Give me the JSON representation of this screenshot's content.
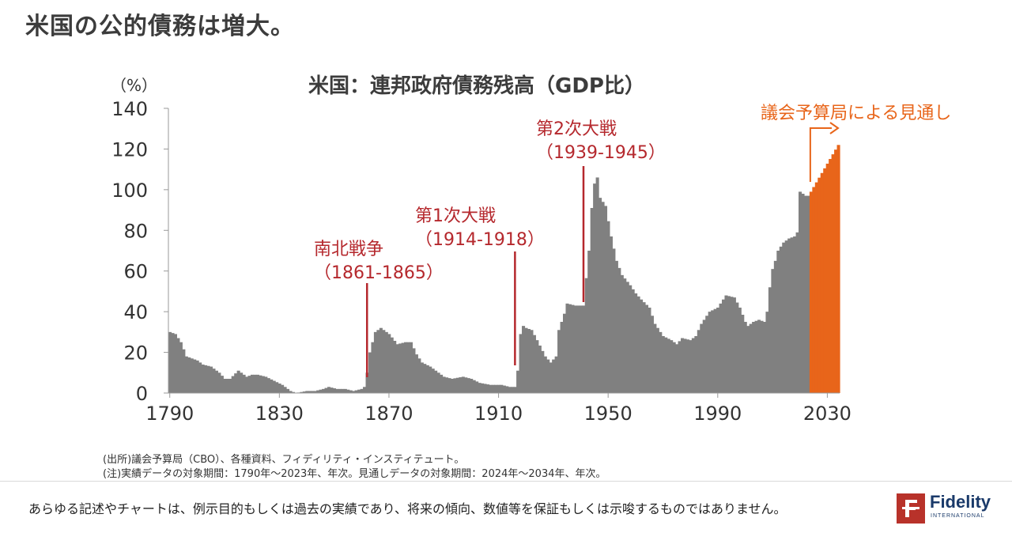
{
  "slide": {
    "title": "米国の公的債務は増大。"
  },
  "chart_data": {
    "type": "bar",
    "title": "米国：連邦政府債務残高（GDP比）",
    "ylabel": "（%）",
    "xlabel": "",
    "ylim": [
      0,
      140
    ],
    "xlim": [
      1790,
      2034
    ],
    "yticks": [
      0,
      20,
      40,
      60,
      80,
      100,
      120,
      140
    ],
    "xticks": [
      1790,
      1830,
      1870,
      1910,
      1950,
      1990,
      2030
    ],
    "grid": false,
    "series": [
      {
        "kind": "actual",
        "color": "#808080",
        "anchors": [
          [
            1790,
            30
          ],
          [
            1792,
            29
          ],
          [
            1794,
            25
          ],
          [
            1796,
            18
          ],
          [
            1800,
            16
          ],
          [
            1802,
            14
          ],
          [
            1805,
            13
          ],
          [
            1808,
            10
          ],
          [
            1810,
            7
          ],
          [
            1812,
            7
          ],
          [
            1815,
            11
          ],
          [
            1818,
            8
          ],
          [
            1820,
            9
          ],
          [
            1822,
            9
          ],
          [
            1825,
            8
          ],
          [
            1828,
            6
          ],
          [
            1831,
            4
          ],
          [
            1834,
            1
          ],
          [
            1836,
            0
          ],
          [
            1840,
            1
          ],
          [
            1843,
            1
          ],
          [
            1846,
            2
          ],
          [
            1848,
            3
          ],
          [
            1851,
            2
          ],
          [
            1854,
            2
          ],
          [
            1857,
            1
          ],
          [
            1860,
            2
          ],
          [
            1861,
            3
          ],
          [
            1862,
            10
          ],
          [
            1863,
            20
          ],
          [
            1865,
            30
          ],
          [
            1867,
            32
          ],
          [
            1870,
            29
          ],
          [
            1873,
            24
          ],
          [
            1876,
            25
          ],
          [
            1878,
            25
          ],
          [
            1880,
            19
          ],
          [
            1882,
            15
          ],
          [
            1885,
            13
          ],
          [
            1890,
            8
          ],
          [
            1893,
            7
          ],
          [
            1897,
            8
          ],
          [
            1900,
            7
          ],
          [
            1903,
            5
          ],
          [
            1907,
            4
          ],
          [
            1911,
            4
          ],
          [
            1914,
            3
          ],
          [
            1916,
            3
          ],
          [
            1917,
            11
          ],
          [
            1918,
            29
          ],
          [
            1919,
            33
          ],
          [
            1920,
            32
          ],
          [
            1922,
            31
          ],
          [
            1924,
            26
          ],
          [
            1927,
            18
          ],
          [
            1929,
            15
          ],
          [
            1931,
            18
          ],
          [
            1932,
            31
          ],
          [
            1934,
            39
          ],
          [
            1935,
            44
          ],
          [
            1938,
            43
          ],
          [
            1941,
            43
          ],
          [
            1943,
            70
          ],
          [
            1944,
            91
          ],
          [
            1945,
            103
          ],
          [
            1946,
            106
          ],
          [
            1947,
            96
          ],
          [
            1949,
            92
          ],
          [
            1951,
            77
          ],
          [
            1953,
            65
          ],
          [
            1955,
            58
          ],
          [
            1958,
            53
          ],
          [
            1960,
            49
          ],
          [
            1962,
            46
          ],
          [
            1965,
            42
          ],
          [
            1967,
            34
          ],
          [
            1970,
            28
          ],
          [
            1973,
            26
          ],
          [
            1975,
            24
          ],
          [
            1977,
            27
          ],
          [
            1980,
            26
          ],
          [
            1982,
            28
          ],
          [
            1984,
            34
          ],
          [
            1987,
            40
          ],
          [
            1990,
            42
          ],
          [
            1992,
            46
          ],
          [
            1993,
            48
          ],
          [
            1996,
            47
          ],
          [
            1998,
            42
          ],
          [
            2000,
            35
          ],
          [
            2001,
            33
          ],
          [
            2003,
            35
          ],
          [
            2005,
            36
          ],
          [
            2007,
            35
          ],
          [
            2008,
            40
          ],
          [
            2009,
            52
          ],
          [
            2010,
            61
          ],
          [
            2011,
            65
          ],
          [
            2012,
            70
          ],
          [
            2014,
            74
          ],
          [
            2016,
            76
          ],
          [
            2018,
            77
          ],
          [
            2019,
            79
          ],
          [
            2020,
            99
          ],
          [
            2021,
            98
          ],
          [
            2022,
            97
          ],
          [
            2023,
            97
          ]
        ]
      },
      {
        "kind": "projection",
        "color": "#e8651a",
        "anchors": [
          [
            2024,
            99
          ],
          [
            2034,
            122
          ]
        ]
      }
    ],
    "annotations": [
      {
        "id": "civil-war",
        "line1": "南北戦争",
        "line2": "（1861-1865）",
        "year": 1862,
        "color": "#b5282d"
      },
      {
        "id": "wwi",
        "line1": "第1次大戦",
        "line2": "（1914-1918）",
        "year": 1916,
        "color": "#b5282d"
      },
      {
        "id": "wwii",
        "line1": "第2次大戦",
        "line2": "（1939-1945）",
        "year": 1941,
        "color": "#b5282d"
      },
      {
        "id": "cbo",
        "line1": "議会予算局による見通し",
        "year": 2024,
        "color": "#e8651a"
      }
    ]
  },
  "footnotes": {
    "source": "(出所)議会予算局（CBO）、各種資料、フィディリティ・インスティテュート。",
    "period": "(注)実績データの対象期間：1790年～2023年、年次。見通しデータの対象期間：2024年～2034年、年次。"
  },
  "disclaimer": "あらゆる記述やチャートは、例示目的もしくは過去の実績であり、将来の傾向、数値等を保証もしくは示唆するものではありません。",
  "logo": {
    "word": "Fidelity",
    "sub": "INTERNATIONAL"
  }
}
